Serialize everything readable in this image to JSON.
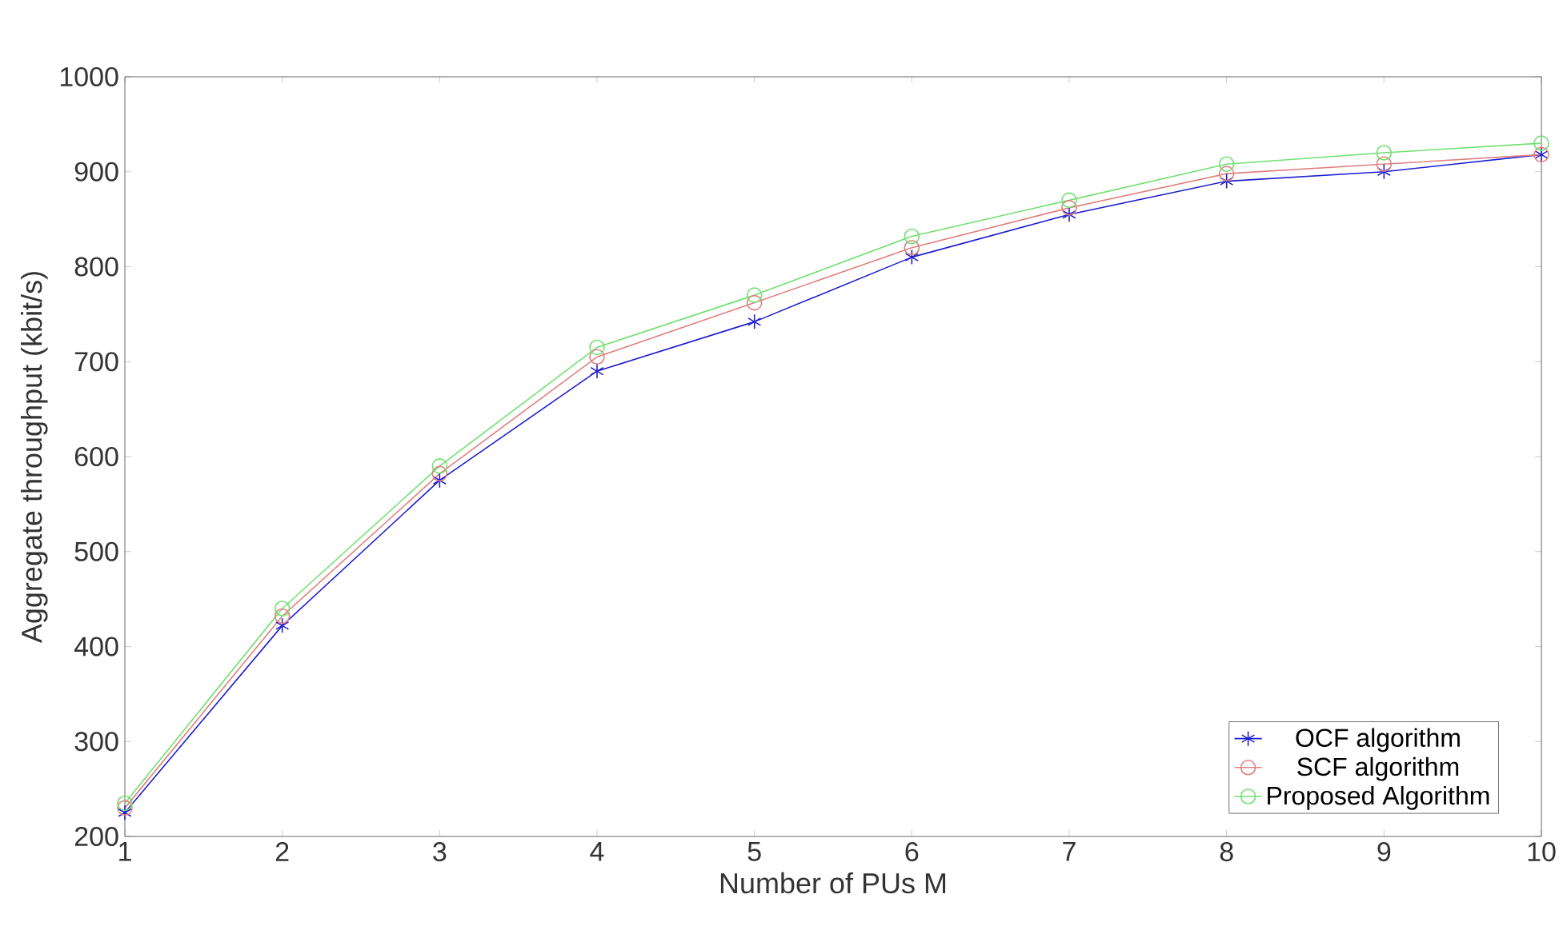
{
  "chart_data": {
    "type": "line",
    "xlabel": "Number of PUs M",
    "ylabel": "Aggregate throughput (kbit/s)",
    "x": [
      1,
      2,
      3,
      4,
      5,
      6,
      7,
      8,
      9,
      10
    ],
    "series": [
      {
        "name": "OCF algorithm",
        "color": "#1f1fd0",
        "marker": "cross",
        "values": [
          225,
          422,
          575,
          690,
          742,
          810,
          855,
          890,
          900,
          918
        ]
      },
      {
        "name": "SCF algorithm",
        "color": "#e08080",
        "marker": "circle",
        "values": [
          230,
          432,
          582,
          705,
          762,
          820,
          862,
          898,
          908,
          918
        ]
      },
      {
        "name": "Proposed Algorithm",
        "color": "#70e070",
        "marker": "circle",
        "values": [
          235,
          440,
          590,
          715,
          770,
          832,
          870,
          908,
          920,
          930
        ]
      }
    ],
    "xlim": [
      1,
      10
    ],
    "xticks": [
      1,
      2,
      3,
      4,
      5,
      6,
      7,
      8,
      9,
      10
    ],
    "ylim": [
      200,
      1000
    ],
    "yticks": [
      200,
      300,
      400,
      500,
      600,
      700,
      800,
      900,
      1000
    ],
    "legend": "bottom right",
    "grid": false,
    "line_style": "solid"
  }
}
